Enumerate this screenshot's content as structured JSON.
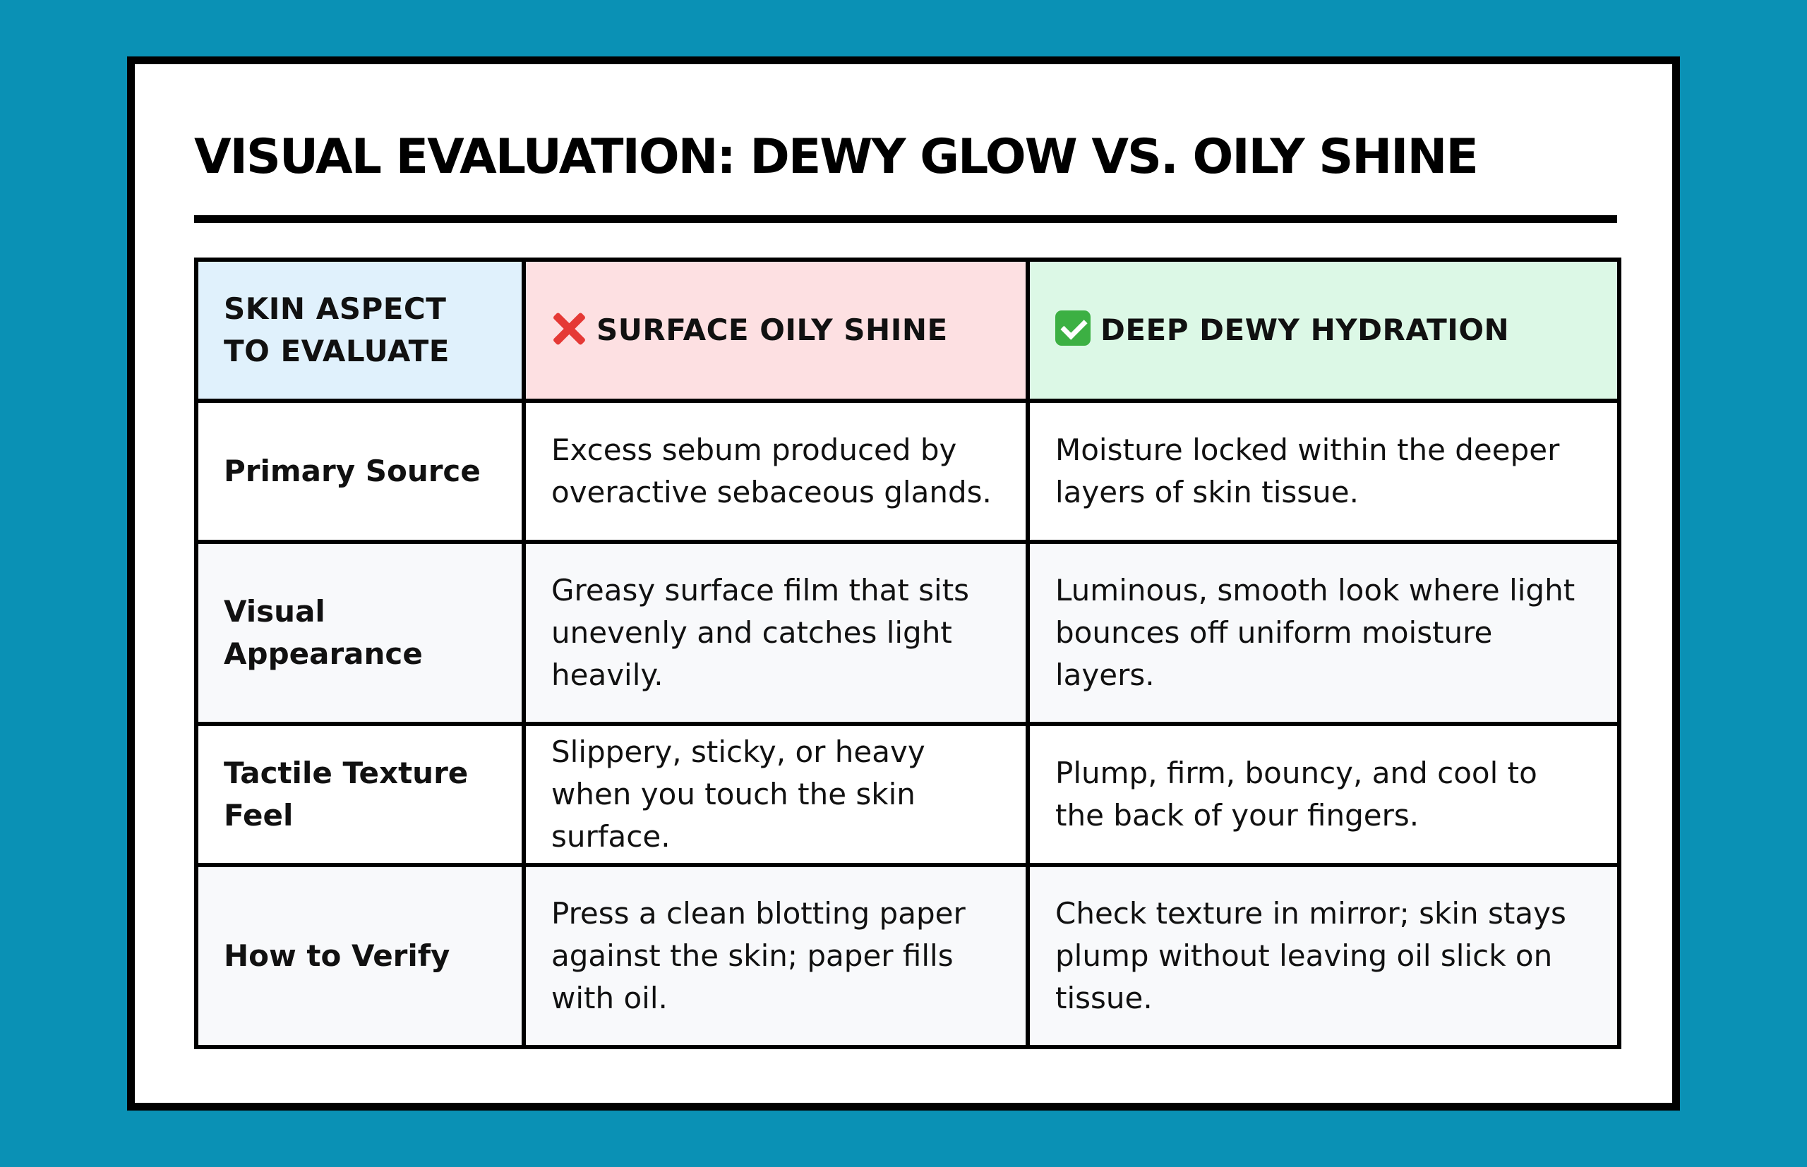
{
  "title": "VISUAL EVALUATION: DEWY GLOW VS. OILY SHINE",
  "colors": {
    "background": "#0a91b5",
    "card": "#ffffff",
    "border": "#000000",
    "header_aspect": "#e0f1fc",
    "header_oily": "#fde0e2",
    "header_dewy": "#dcf8e6",
    "row_alt": "#f8f9fb",
    "cross_icon": "#e53935",
    "check_icon": "#3cb043"
  },
  "table": {
    "headers": {
      "aspect": "SKIN ASPECT TO EVALUATE",
      "oily": "SURFACE OILY SHINE",
      "oily_icon": "cross-mark-icon",
      "dewy": "DEEP DEWY HYDRATION",
      "dewy_icon": "check-mark-icon"
    },
    "rows": [
      {
        "aspect": "Primary Source",
        "oily": "Excess sebum produced by overactive sebaceous glands.",
        "dewy": "Moisture locked within the deeper layers of skin tissue."
      },
      {
        "aspect": "Visual Appearance",
        "oily": "Greasy surface film that sits unevenly and catches light heavily.",
        "dewy": "Luminous, smooth look where light bounces off uniform moisture layers."
      },
      {
        "aspect": "Tactile Texture Feel",
        "oily": "Slippery, sticky, or heavy when you touch the skin surface.",
        "dewy": "Plump, firm, bouncy, and cool to the back of your fingers."
      },
      {
        "aspect": "How to Verify",
        "oily": "Press a clean blotting paper against the skin; paper fills with oil.",
        "dewy": "Check texture in mirror; skin stays plump without leaving oil slick on tissue."
      }
    ]
  }
}
